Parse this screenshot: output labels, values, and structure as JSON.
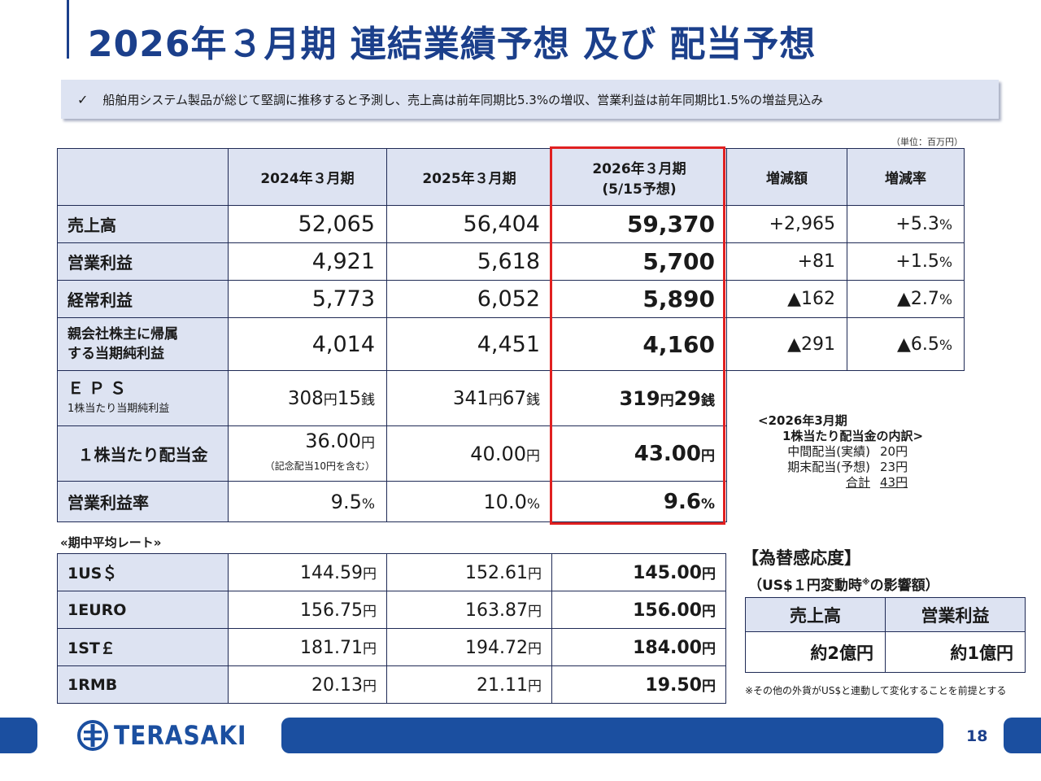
{
  "title": "2026年３月期 連結業績予想 及び 配当予想",
  "summary": {
    "check": "✓",
    "text": "船舶用システム製品が総じて堅調に推移すると予測し、売上高は前年同期比5.3%の増収、営業利益は前年同期比1.5%の増益見込み"
  },
  "unit": "（単位：百万円）",
  "main_table": {
    "headers": [
      "",
      "2024年３月期",
      "2025年３月期",
      "2026年３月期",
      "(5/15予想)",
      "増減額",
      "増減率"
    ],
    "rows": [
      {
        "label": "売上高",
        "v2024": "52,065",
        "v2025": "56,404",
        "v2026": "59,370",
        "diff": "+2,965",
        "rate": "+5.3",
        "rate_unit": "%"
      },
      {
        "label": "営業利益",
        "v2024": "4,921",
        "v2025": "5,618",
        "v2026": "5,700",
        "diff": "+81",
        "rate": "+1.5",
        "rate_unit": "%"
      },
      {
        "label": "経常利益",
        "v2024": "5,773",
        "v2025": "6,052",
        "v2026": "5,890",
        "diff": "▲162",
        "rate": "▲2.7",
        "rate_unit": "%"
      },
      {
        "label1": "親会社株主に帰属",
        "label2": "する当期純利益",
        "v2024": "4,014",
        "v2025": "4,451",
        "v2026": "4,160",
        "diff": "▲291",
        "rate": "▲6.5",
        "rate_unit": "%"
      }
    ],
    "eps": {
      "label": "ＥＰＳ",
      "sub": "1株当たり当期純利益",
      "v2024": [
        "308",
        "円",
        "15",
        "銭"
      ],
      "v2025": [
        "341",
        "円",
        "67",
        "銭"
      ],
      "v2026": [
        "319",
        "円",
        "29",
        "銭"
      ]
    },
    "dividend": {
      "label": "１株当たり配当金",
      "v2024": "36.00",
      "v2024_note": "（記念配当10円を含む）",
      "v2025": "40.00",
      "v2026": "43.00",
      "unit": "円"
    },
    "margin": {
      "label": "営業利益率",
      "v2024": "9.5",
      "v2025": "10.0",
      "v2026": "9.6",
      "unit": "%"
    }
  },
  "breakdown": {
    "title1": "<2026年3月期",
    "title2": "1株当たり配当金の内訳>",
    "items": [
      {
        "k": "中間配当(実績)",
        "v": "20円"
      },
      {
        "k": "期末配当(予想)",
        "v": "23円"
      },
      {
        "k": "合計",
        "v": "43円"
      }
    ]
  },
  "rates": {
    "title": "«期中平均レート»",
    "unit": "円",
    "rows": [
      {
        "label": "1US＄",
        "v2024": "144.59",
        "v2025": "152.61",
        "v2026": "145.00"
      },
      {
        "label": "1EURO",
        "v2024": "156.75",
        "v2025": "163.87",
        "v2026": "156.00"
      },
      {
        "label": "1ST￡",
        "v2024": "181.71",
        "v2025": "194.72",
        "v2026": "184.00"
      },
      {
        "label": "1RMB",
        "v2024": "20.13",
        "v2025": "21.11",
        "v2026": "19.50"
      }
    ]
  },
  "fx": {
    "title": "【為替感応度】",
    "sub": "（US$１円変動時",
    "sub_note": "※",
    "sub_end": "の影響額）",
    "headers": [
      "売上高",
      "営業利益"
    ],
    "values": [
      "約2億円",
      "約1億円"
    ],
    "note": "※その他の外貨がUS$と連動して変化することを前提とする"
  },
  "footer": {
    "logo": "TERASAKI",
    "page": "18"
  },
  "colors": {
    "brand": "#1b3f8b",
    "header_bg": "#dde3f2",
    "highlight": "#e02020"
  }
}
